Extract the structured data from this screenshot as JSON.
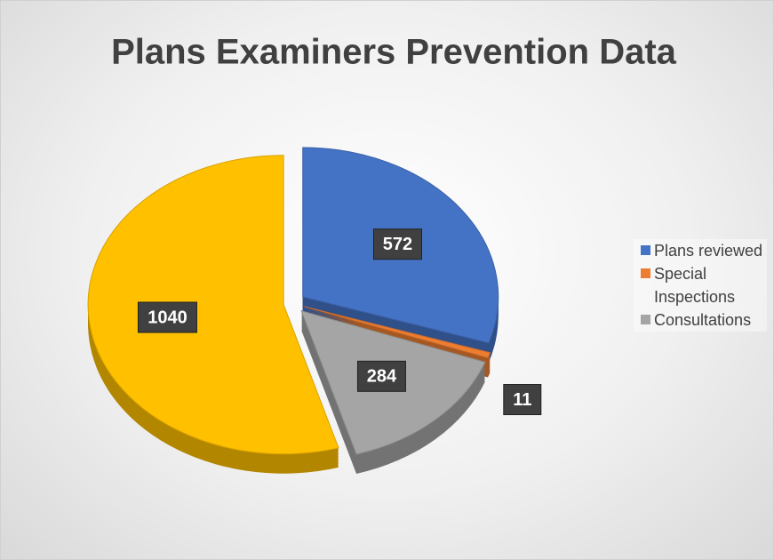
{
  "chart_data": {
    "type": "pie",
    "title": "Plans Examiners Prevention Data",
    "categories": [
      "Plans reviewed",
      "Special Inspections",
      "Consultations",
      null
    ],
    "values": [
      572,
      11,
      284,
      1040
    ],
    "colors": [
      "#4472c4",
      "#ed7d31",
      "#a5a5a5",
      "#ffc000"
    ]
  }
}
